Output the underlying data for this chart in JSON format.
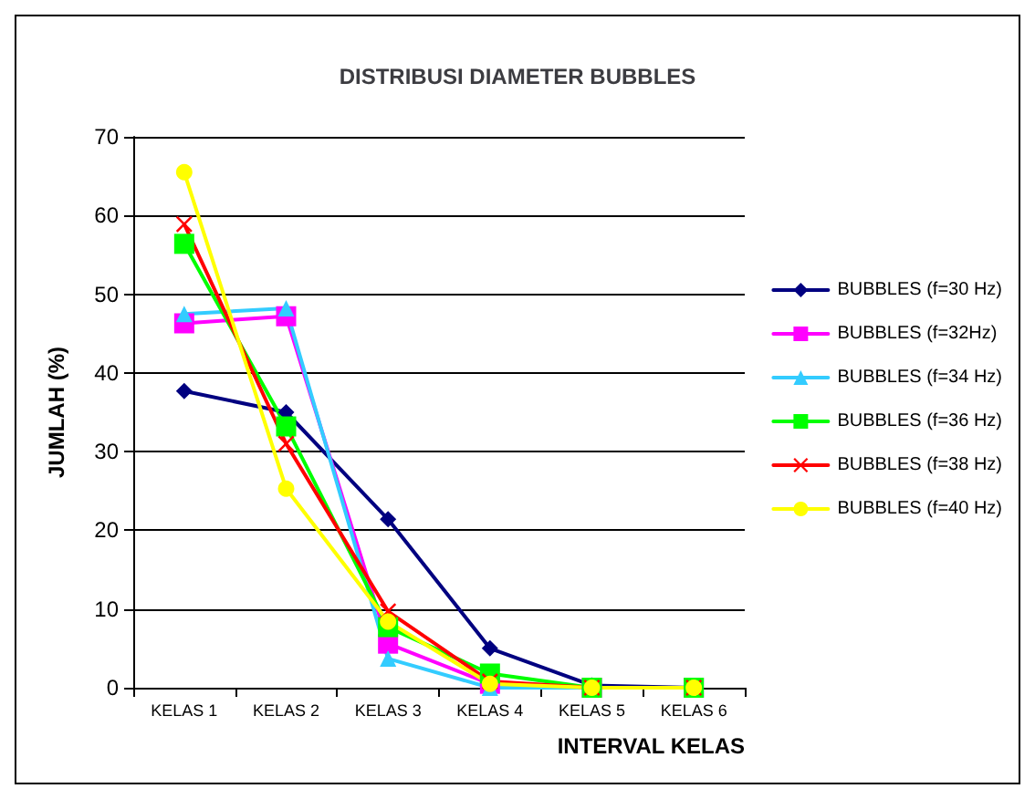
{
  "chart_data": {
    "type": "line",
    "title": "DISTRIBUSI DIAMETER BUBBLES",
    "xlabel": "INTERVAL KELAS",
    "ylabel": "JUMLAH (%)",
    "categories": [
      "KELAS 1",
      "KELAS 2",
      "KELAS 3",
      "KELAS 4",
      "KELAS 5",
      "KELAS 6"
    ],
    "series": [
      {
        "name": "BUBBLES (f=30 Hz)",
        "color": "#000080",
        "marker": "diamond",
        "values": [
          37.7,
          35,
          21.4,
          5,
          0.3,
          0
        ]
      },
      {
        "name": "BUBBLES (f=32Hz)",
        "color": "#ff00ff",
        "marker": "square",
        "values": [
          46.3,
          47.2,
          5.6,
          0.5,
          0,
          0
        ]
      },
      {
        "name": "BUBBLES (f=34 Hz)",
        "color": "#33ccff",
        "marker": "triangle",
        "values": [
          47.5,
          48.2,
          3.7,
          0,
          0,
          0
        ]
      },
      {
        "name": "BUBBLES (f=36 Hz)",
        "color": "#00ff00",
        "marker": "square",
        "values": [
          56.4,
          33.2,
          7.7,
          1.8,
          0,
          0
        ]
      },
      {
        "name": "BUBBLES (f=38 Hz)",
        "color": "#ff0000",
        "marker": "cross",
        "values": [
          58.9,
          31,
          9.7,
          0.8,
          0,
          0
        ]
      },
      {
        "name": "BUBBLES (f=40 Hz)",
        "color": "#ffff00",
        "marker": "circle",
        "values": [
          65.5,
          25.3,
          8.4,
          0.5,
          0,
          0
        ]
      }
    ],
    "ylim": [
      0,
      70
    ],
    "yticks": [
      0,
      10,
      20,
      30,
      40,
      50,
      60,
      70
    ],
    "grid": "y",
    "legend": "right",
    "line_style": "solid"
  }
}
